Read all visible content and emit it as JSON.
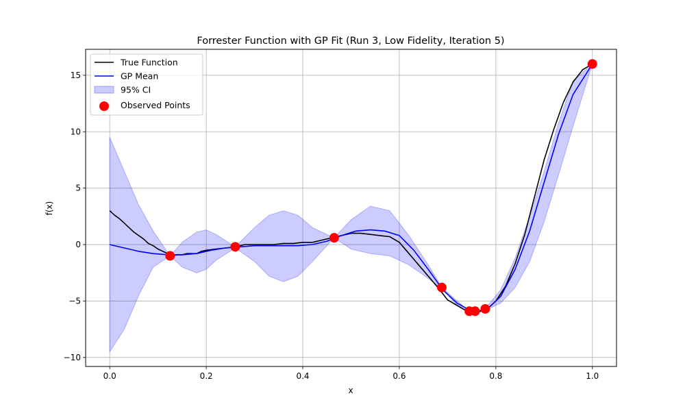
{
  "chart_data": {
    "type": "line",
    "title": "Forrester Function with GP Fit (Run 3, Low Fidelity, Iteration 5)",
    "xlabel": "x",
    "ylabel": "f(x)",
    "xlim": [
      -0.05,
      1.05
    ],
    "ylim": [
      -10.8,
      17.3
    ],
    "xticks": [
      0.0,
      0.2,
      0.4,
      0.6,
      0.8,
      1.0
    ],
    "xtick_labels": [
      "0.0",
      "0.2",
      "0.4",
      "0.6",
      "0.8",
      "1.0"
    ],
    "yticks": [
      -10,
      -5,
      0,
      5,
      10,
      15
    ],
    "ytick_labels": [
      "−10",
      "−5",
      "0",
      "5",
      "10",
      "15"
    ],
    "grid": true,
    "legend_placement": "upper-left",
    "colors": {
      "true_function": "#000000",
      "gp_mean": "#0000ff",
      "ci_fill": "#0000ff",
      "observed": "#ff0000",
      "grid": "#b0b0b0"
    },
    "series": [
      {
        "name": "True Function",
        "kind": "line",
        "x": [
          0.0,
          0.01,
          0.02,
          0.03,
          0.04,
          0.05,
          0.06,
          0.07,
          0.08,
          0.09,
          0.1,
          0.11,
          0.12,
          0.13,
          0.14,
          0.15,
          0.16,
          0.17,
          0.18,
          0.19,
          0.2,
          0.22,
          0.24,
          0.26,
          0.28,
          0.3,
          0.32,
          0.34,
          0.36,
          0.38,
          0.4,
          0.42,
          0.44,
          0.46,
          0.48,
          0.5,
          0.52,
          0.54,
          0.56,
          0.58,
          0.6,
          0.62,
          0.64,
          0.66,
          0.68,
          0.7,
          0.72,
          0.74,
          0.76,
          0.78,
          0.8,
          0.82,
          0.84,
          0.86,
          0.88,
          0.9,
          0.92,
          0.94,
          0.96,
          0.98,
          1.0
        ],
        "y": [
          3.0,
          2.6,
          2.3,
          1.9,
          1.5,
          1.1,
          0.8,
          0.5,
          0.1,
          -0.1,
          -0.4,
          -0.6,
          -0.8,
          -1.0,
          -0.9,
          -0.9,
          -0.8,
          -0.8,
          -0.8,
          -0.6,
          -0.5,
          -0.4,
          -0.3,
          -0.2,
          0.0,
          0.0,
          0.0,
          0.0,
          0.1,
          0.1,
          0.2,
          0.2,
          0.4,
          0.6,
          0.8,
          1.0,
          1.0,
          0.9,
          0.8,
          0.7,
          0.2,
          -0.8,
          -1.8,
          -2.8,
          -3.8,
          -4.9,
          -5.4,
          -5.9,
          -6.0,
          -5.8,
          -5.0,
          -3.7,
          -1.7,
          0.9,
          4.2,
          7.5,
          10.2,
          12.6,
          14.4,
          15.5,
          16.0
        ]
      },
      {
        "name": "GP Mean",
        "kind": "line",
        "x": [
          0.0,
          0.03,
          0.06,
          0.09,
          0.12,
          0.15,
          0.18,
          0.21,
          0.24,
          0.27,
          0.3,
          0.33,
          0.36,
          0.39,
          0.42,
          0.45,
          0.48,
          0.51,
          0.54,
          0.57,
          0.6,
          0.63,
          0.66,
          0.69,
          0.72,
          0.75,
          0.78,
          0.81,
          0.84,
          0.87,
          0.9,
          0.93,
          0.96,
          1.0
        ],
        "y": [
          0.0,
          -0.3,
          -0.6,
          -0.8,
          -0.9,
          -0.9,
          -0.8,
          -0.5,
          -0.3,
          -0.2,
          -0.1,
          -0.1,
          -0.1,
          -0.1,
          0.0,
          0.3,
          0.8,
          1.2,
          1.3,
          1.2,
          0.8,
          -0.5,
          -2.2,
          -4.0,
          -5.2,
          -5.9,
          -5.8,
          -4.6,
          -2.2,
          1.2,
          5.5,
          9.8,
          13.3,
          16.0
        ]
      },
      {
        "name": "95% CI",
        "kind": "band",
        "x": [
          0.0,
          0.03,
          0.06,
          0.09,
          0.125,
          0.15,
          0.18,
          0.2,
          0.22,
          0.26,
          0.3,
          0.33,
          0.36,
          0.39,
          0.42,
          0.465,
          0.5,
          0.54,
          0.58,
          0.62,
          0.66,
          0.688,
          0.72,
          0.745,
          0.76,
          0.78,
          0.81,
          0.84,
          0.87,
          0.9,
          0.93,
          0.96,
          1.0
        ],
        "lower": [
          -9.5,
          -7.5,
          -4.5,
          -2.0,
          -1.0,
          -2.0,
          -2.5,
          -2.2,
          -1.4,
          -0.3,
          -1.5,
          -2.8,
          -3.3,
          -2.8,
          -1.5,
          0.6,
          -0.4,
          -0.8,
          -1.0,
          -1.8,
          -3.0,
          -3.9,
          -5.4,
          -6.0,
          -6.0,
          -5.8,
          -5.2,
          -3.8,
          -1.5,
          2.0,
          6.2,
          10.5,
          16.0
        ],
        "upper": [
          9.5,
          6.5,
          3.5,
          1.2,
          -1.0,
          0.2,
          1.1,
          1.3,
          0.9,
          -0.2,
          1.5,
          2.6,
          3.0,
          2.6,
          1.5,
          0.6,
          2.2,
          3.4,
          3.0,
          0.8,
          -1.8,
          -3.8,
          -5.0,
          -5.9,
          -5.9,
          -5.6,
          -4.0,
          -1.2,
          2.5,
          6.5,
          10.8,
          14.5,
          16.0
        ]
      },
      {
        "name": "Observed Points",
        "kind": "scatter",
        "x": [
          0.125,
          0.26,
          0.465,
          0.688,
          0.745,
          0.757,
          0.778,
          1.0
        ],
        "y": [
          -1.0,
          -0.2,
          0.6,
          -3.8,
          -5.9,
          -5.9,
          -5.7,
          16.0
        ]
      }
    ]
  }
}
